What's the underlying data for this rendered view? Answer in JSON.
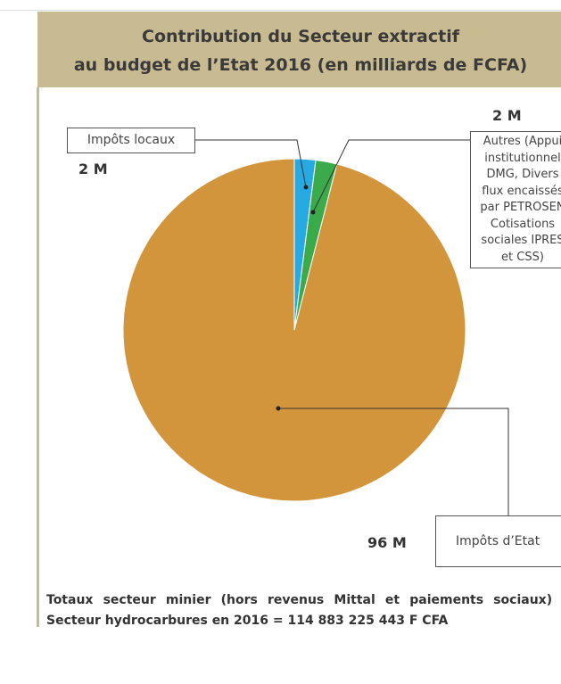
{
  "chart_data": {
    "type": "pie",
    "title": [
      "Contribution du Secteur extractif",
      "au budget de l’Etat 2016 (en milliards de FCFA)"
    ],
    "categories": [
      "Impôts locaux",
      "Autres (Appui institutionnel DMG, Divers flux encaissés par PETROSEN Cotisations sociales IPRES et CSS)",
      "Impôts d’Etat"
    ],
    "values": [
      2,
      2,
      96
    ],
    "value_labels": [
      "2 M",
      "2 M",
      "96 M"
    ],
    "colors": [
      "#27a9e1",
      "#3aaa4b",
      "#d3953b"
    ],
    "note": "Totaux secteur minier (hors revenus Mittal et paiements sociaux) + Secteur hydrocarbures en 2016 = 114 883 225 443 F CFA"
  }
}
